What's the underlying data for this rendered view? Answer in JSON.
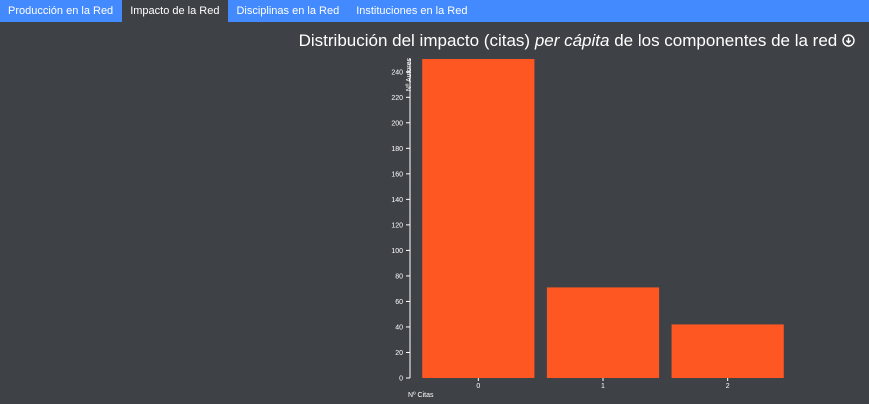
{
  "nav": {
    "tabs": [
      "Producción en la Red",
      "Impacto de la Red",
      "Disciplinas en la Red",
      "Instituciones en la Red"
    ],
    "active": 1
  },
  "chart_data": {
    "type": "bar",
    "title": {
      "start": "Distribución del impacto (citas)",
      "emphasis": "per cápita",
      "end": "de los componentes de la red"
    },
    "x_label": "Nº Citas",
    "y_label": "Nº Autores",
    "categories": [
      "0",
      "1",
      "2"
    ],
    "values": [
      250,
      71,
      42
    ],
    "color": "#ff5722",
    "ylim": [
      0,
      250
    ],
    "yticks": [
      0,
      20,
      40,
      60,
      80,
      100,
      120,
      140,
      160,
      180,
      200,
      220,
      240
    ]
  }
}
